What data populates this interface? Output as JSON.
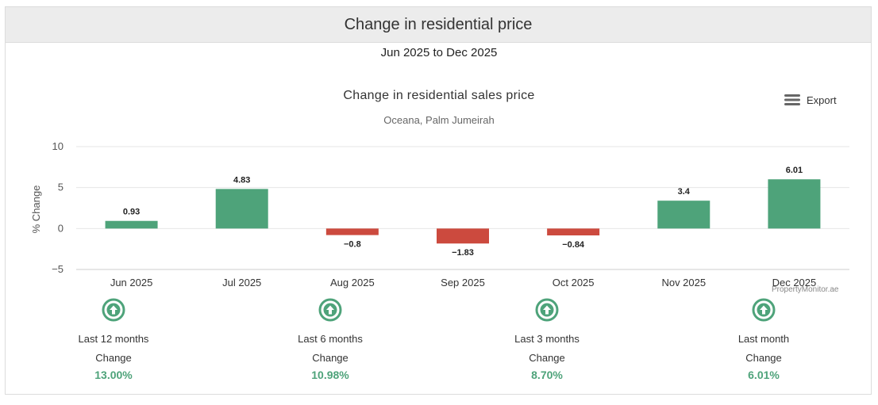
{
  "header": {
    "title": "Change in residential price"
  },
  "period": "Jun 2025 to Dec 2025",
  "export_label": "Export",
  "credit": "PropertyMonitor.ae",
  "colors": {
    "positive": "#4ea37a",
    "negative": "#cc4a3e",
    "grid": "#e6e6e6"
  },
  "chart_data": {
    "type": "bar",
    "title": "Change in residential sales price",
    "subtitle": "Oceana, Palm Jumeirah",
    "xlabel": "",
    "ylabel": "% Change",
    "categories": [
      "Jun 2025",
      "Jul 2025",
      "Aug 2025",
      "Sep 2025",
      "Oct 2025",
      "Nov 2025",
      "Dec 2025"
    ],
    "values": [
      0.93,
      4.83,
      -0.8,
      -1.83,
      -0.84,
      3.4,
      6.01
    ],
    "value_labels": [
      "0.93",
      "4.83",
      "−0.8",
      "−1.83",
      "−0.84",
      "3.4",
      "6.01"
    ],
    "ylim": [
      -5,
      10
    ],
    "yticks": [
      10,
      5,
      0,
      -5
    ],
    "ytick_labels": [
      "10",
      "5",
      "0",
      "−5"
    ],
    "grid": true
  },
  "stats": [
    {
      "period": "Last 12 months",
      "label": "Change",
      "value": "13.00%",
      "icon": "arrow-up-circle-icon"
    },
    {
      "period": "Last 6 months",
      "label": "Change",
      "value": "10.98%",
      "icon": "arrow-up-circle-icon"
    },
    {
      "period": "Last 3 months",
      "label": "Change",
      "value": "8.70%",
      "icon": "arrow-up-circle-icon"
    },
    {
      "period": "Last month",
      "label": "Change",
      "value": "6.01%",
      "icon": "arrow-up-circle-icon"
    }
  ]
}
